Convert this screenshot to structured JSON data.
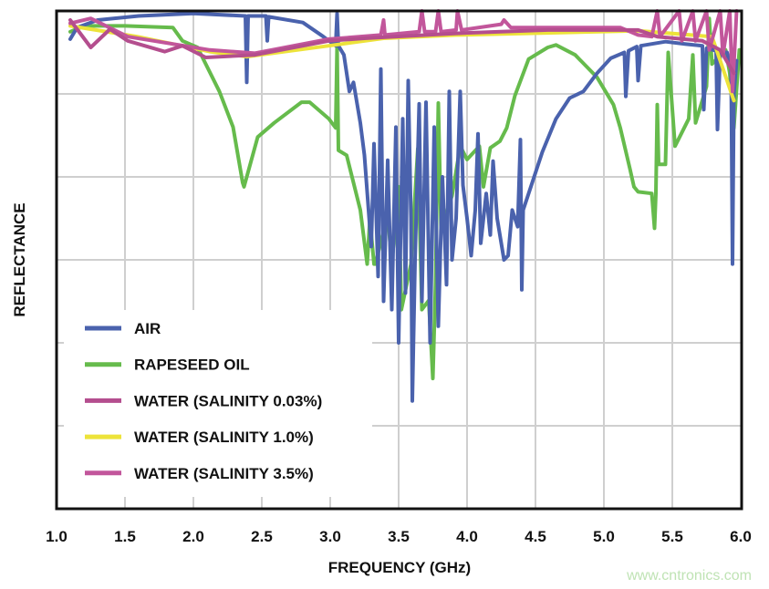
{
  "chart_data": {
    "type": "line",
    "title": "",
    "xlabel": "FREQUENCY (GHz)",
    "ylabel": "REFLECTANCE",
    "xlim": [
      1.0,
      6.0
    ],
    "ylim": [
      0,
      6
    ],
    "x_ticks": [
      "1.0",
      "1.5",
      "2.0",
      "2.5",
      "3.0",
      "3.5",
      "4.0",
      "4.5",
      "5.0",
      "5.5",
      "6.0"
    ],
    "y_tick_labels_shown": false,
    "grid": true,
    "legend_position": "bottom-left",
    "series": [
      {
        "name": "RAPESEED OIL",
        "color": "#66bb4c",
        "points": [
          [
            1.1,
            5.75
          ],
          [
            1.2,
            5.82
          ],
          [
            1.5,
            5.82
          ],
          [
            1.85,
            5.8
          ],
          [
            1.92,
            5.64
          ],
          [
            2.03,
            5.56
          ],
          [
            2.19,
            5.03
          ],
          [
            2.29,
            4.6
          ],
          [
            2.36,
            3.93
          ],
          [
            2.37,
            3.88
          ],
          [
            2.47,
            4.48
          ],
          [
            2.59,
            4.65
          ],
          [
            2.79,
            4.9
          ],
          [
            2.85,
            4.9
          ],
          [
            2.99,
            4.7
          ],
          [
            3.04,
            4.59
          ],
          [
            3.05,
            5.58
          ],
          [
            3.06,
            4.32
          ],
          [
            3.12,
            4.26
          ],
          [
            3.22,
            3.6
          ],
          [
            3.27,
            2.95
          ],
          [
            3.29,
            3.49
          ],
          [
            3.32,
            2.95
          ],
          [
            3.33,
            2.95
          ],
          [
            3.42,
            3.55
          ],
          [
            3.45,
            2.95
          ],
          [
            3.5,
            3.88
          ],
          [
            3.52,
            2.4
          ],
          [
            3.59,
            2.95
          ],
          [
            3.64,
            4.34
          ],
          [
            3.67,
            2.4
          ],
          [
            3.72,
            2.51
          ],
          [
            3.75,
            1.57
          ],
          [
            3.77,
            2.73
          ],
          [
            3.79,
            4.89
          ],
          [
            3.81,
            3.38
          ],
          [
            3.89,
            3.77
          ],
          [
            3.95,
            4.37
          ],
          [
            4.0,
            4.21
          ],
          [
            4.09,
            4.37
          ],
          [
            4.12,
            3.88
          ],
          [
            4.17,
            4.35
          ],
          [
            4.24,
            4.43
          ],
          [
            4.29,
            4.59
          ],
          [
            4.35,
            4.98
          ],
          [
            4.4,
            5.2
          ],
          [
            4.45,
            5.42
          ],
          [
            4.59,
            5.56
          ],
          [
            4.65,
            5.59
          ],
          [
            4.79,
            5.47
          ],
          [
            4.95,
            5.2
          ],
          [
            5.07,
            4.87
          ],
          [
            5.12,
            4.59
          ],
          [
            5.19,
            4.1
          ],
          [
            5.22,
            3.88
          ],
          [
            5.25,
            3.82
          ],
          [
            5.35,
            3.8
          ],
          [
            5.37,
            3.38
          ],
          [
            5.38,
            3.8
          ],
          [
            5.39,
            4.87
          ],
          [
            5.4,
            4.15
          ],
          [
            5.45,
            4.15
          ],
          [
            5.47,
            5.5
          ],
          [
            5.52,
            4.37
          ],
          [
            5.62,
            4.7
          ],
          [
            5.65,
            5.47
          ],
          [
            5.67,
            4.65
          ],
          [
            5.75,
            5.09
          ],
          [
            5.77,
            5.91
          ],
          [
            5.79,
            5.36
          ],
          [
            5.89,
            5.53
          ],
          [
            5.92,
            5.25
          ],
          [
            5.95,
            4.59
          ],
          [
            5.99,
            5.53
          ]
        ]
      },
      {
        "name": "AIR",
        "color": "#4a62ad",
        "points": [
          [
            1.1,
            5.66
          ],
          [
            1.15,
            5.8
          ],
          [
            1.3,
            5.89
          ],
          [
            1.6,
            5.94
          ],
          [
            2.0,
            5.97
          ],
          [
            2.38,
            5.94
          ],
          [
            2.39,
            5.14
          ],
          [
            2.4,
            5.94
          ],
          [
            2.53,
            5.94
          ],
          [
            2.54,
            5.64
          ],
          [
            2.55,
            5.93
          ],
          [
            2.8,
            5.86
          ],
          [
            2.95,
            5.69
          ],
          [
            3.04,
            5.58
          ],
          [
            3.05,
            5.97
          ],
          [
            3.06,
            5.58
          ],
          [
            3.1,
            5.47
          ],
          [
            3.14,
            5.03
          ],
          [
            3.17,
            5.14
          ],
          [
            3.22,
            4.65
          ],
          [
            3.25,
            4.26
          ],
          [
            3.28,
            3.6
          ],
          [
            3.3,
            3.16
          ],
          [
            3.32,
            4.4
          ],
          [
            3.35,
            2.8
          ],
          [
            3.37,
            5.3
          ],
          [
            3.39,
            2.5
          ],
          [
            3.42,
            4.2
          ],
          [
            3.45,
            2.4
          ],
          [
            3.48,
            4.6
          ],
          [
            3.5,
            2.0
          ],
          [
            3.53,
            4.7
          ],
          [
            3.55,
            2.6
          ],
          [
            3.57,
            5.16
          ],
          [
            3.59,
            3.5
          ],
          [
            3.6,
            1.3
          ],
          [
            3.62,
            3.0
          ],
          [
            3.65,
            4.88
          ],
          [
            3.67,
            2.5
          ],
          [
            3.7,
            4.9
          ],
          [
            3.73,
            2.0
          ],
          [
            3.76,
            4.6
          ],
          [
            3.79,
            2.2
          ],
          [
            3.82,
            4.0
          ],
          [
            3.85,
            2.7
          ],
          [
            3.87,
            5.03
          ],
          [
            3.89,
            3.0
          ],
          [
            3.92,
            3.5
          ],
          [
            3.95,
            5.03
          ],
          [
            3.97,
            3.9
          ],
          [
            4.0,
            3.5
          ],
          [
            4.03,
            3.05
          ],
          [
            4.06,
            3.6
          ],
          [
            4.08,
            4.52
          ],
          [
            4.1,
            3.2
          ],
          [
            4.14,
            3.8
          ],
          [
            4.17,
            3.3
          ],
          [
            4.19,
            4.19
          ],
          [
            4.22,
            3.5
          ],
          [
            4.27,
            3.0
          ],
          [
            4.3,
            3.05
          ],
          [
            4.33,
            3.6
          ],
          [
            4.37,
            3.4
          ],
          [
            4.39,
            4.45
          ],
          [
            4.4,
            2.64
          ],
          [
            4.41,
            3.6
          ],
          [
            4.45,
            3.8
          ],
          [
            4.55,
            4.3
          ],
          [
            4.65,
            4.7
          ],
          [
            4.75,
            4.95
          ],
          [
            4.85,
            5.03
          ],
          [
            4.95,
            5.25
          ],
          [
            5.05,
            5.43
          ],
          [
            5.15,
            5.5
          ],
          [
            5.16,
            4.97
          ],
          [
            5.18,
            5.52
          ],
          [
            5.24,
            5.57
          ],
          [
            5.25,
            5.16
          ],
          [
            5.27,
            5.58
          ],
          [
            5.45,
            5.63
          ],
          [
            5.6,
            5.6
          ],
          [
            5.72,
            5.58
          ],
          [
            5.73,
            4.81
          ],
          [
            5.75,
            5.55
          ],
          [
            5.82,
            5.52
          ],
          [
            5.83,
            4.57
          ],
          [
            5.85,
            5.5
          ],
          [
            5.9,
            5.5
          ],
          [
            5.93,
            5.3
          ],
          [
            5.94,
            2.95
          ],
          [
            5.95,
            5.0
          ],
          [
            5.97,
            5.4
          ]
        ]
      },
      {
        "name": "WATER (SALINITY 1.0%)",
        "color": "#ede33a",
        "points": [
          [
            1.1,
            5.82
          ],
          [
            1.59,
            5.69
          ],
          [
            2.12,
            5.51
          ],
          [
            2.39,
            5.45
          ],
          [
            2.99,
            5.58
          ],
          [
            3.39,
            5.67
          ],
          [
            3.92,
            5.71
          ],
          [
            5.25,
            5.76
          ],
          [
            5.79,
            5.69
          ],
          [
            5.95,
            4.92
          ]
        ]
      },
      {
        "name": "WATER (SALINITY 3.5%)",
        "color": "#c2569b",
        "points": [
          [
            1.1,
            5.85
          ],
          [
            1.25,
            5.91
          ],
          [
            1.52,
            5.69
          ],
          [
            2.12,
            5.53
          ],
          [
            2.45,
            5.49
          ],
          [
            2.99,
            5.66
          ],
          [
            3.37,
            5.71
          ],
          [
            3.39,
            5.89
          ],
          [
            3.4,
            5.71
          ],
          [
            3.65,
            5.75
          ],
          [
            3.67,
            6.0
          ],
          [
            3.69,
            5.75
          ],
          [
            3.77,
            5.75
          ],
          [
            3.79,
            6.0
          ],
          [
            3.81,
            5.75
          ],
          [
            3.92,
            5.77
          ],
          [
            3.93,
            6.0
          ],
          [
            3.96,
            5.77
          ],
          [
            4.25,
            5.84
          ],
          [
            4.27,
            5.89
          ],
          [
            4.32,
            5.8
          ],
          [
            5.12,
            5.8
          ],
          [
            5.25,
            5.71
          ],
          [
            5.35,
            5.69
          ],
          [
            5.39,
            6.0
          ],
          [
            5.41,
            5.69
          ],
          [
            5.55,
            6.0
          ],
          [
            5.57,
            5.64
          ],
          [
            5.65,
            6.0
          ],
          [
            5.67,
            5.64
          ],
          [
            5.75,
            6.0
          ],
          [
            5.77,
            5.53
          ],
          [
            5.85,
            6.0
          ],
          [
            5.87,
            5.47
          ],
          [
            5.92,
            6.0
          ],
          [
            5.94,
            5.03
          ],
          [
            5.97,
            6.0
          ]
        ]
      },
      {
        "name": "WATER (SALINITY 0.03%)",
        "color": "#b44e8e",
        "points": [
          [
            1.1,
            5.89
          ],
          [
            1.25,
            5.56
          ],
          [
            1.39,
            5.78
          ],
          [
            1.52,
            5.64
          ],
          [
            1.79,
            5.51
          ],
          [
            1.92,
            5.58
          ],
          [
            2.09,
            5.44
          ],
          [
            2.45,
            5.47
          ],
          [
            2.99,
            5.64
          ],
          [
            3.25,
            5.67
          ],
          [
            3.92,
            5.73
          ],
          [
            4.59,
            5.77
          ],
          [
            5.25,
            5.77
          ],
          [
            5.39,
            5.69
          ],
          [
            5.72,
            5.64
          ],
          [
            5.85,
            5.53
          ],
          [
            5.95,
            5.25
          ]
        ]
      }
    ],
    "legend": [
      {
        "label": "AIR",
        "color": "#4a62ad"
      },
      {
        "label": "RAPESEED OIL",
        "color": "#66bb4c"
      },
      {
        "label": "WATER (SALINITY 0.03%)",
        "color": "#b44e8e"
      },
      {
        "label": "WATER (SALINITY 1.0%)",
        "color": "#ede33a"
      },
      {
        "label": "WATER (SALINITY 3.5%)",
        "color": "#c2569b"
      }
    ]
  },
  "watermark": "www.cntronics.com"
}
